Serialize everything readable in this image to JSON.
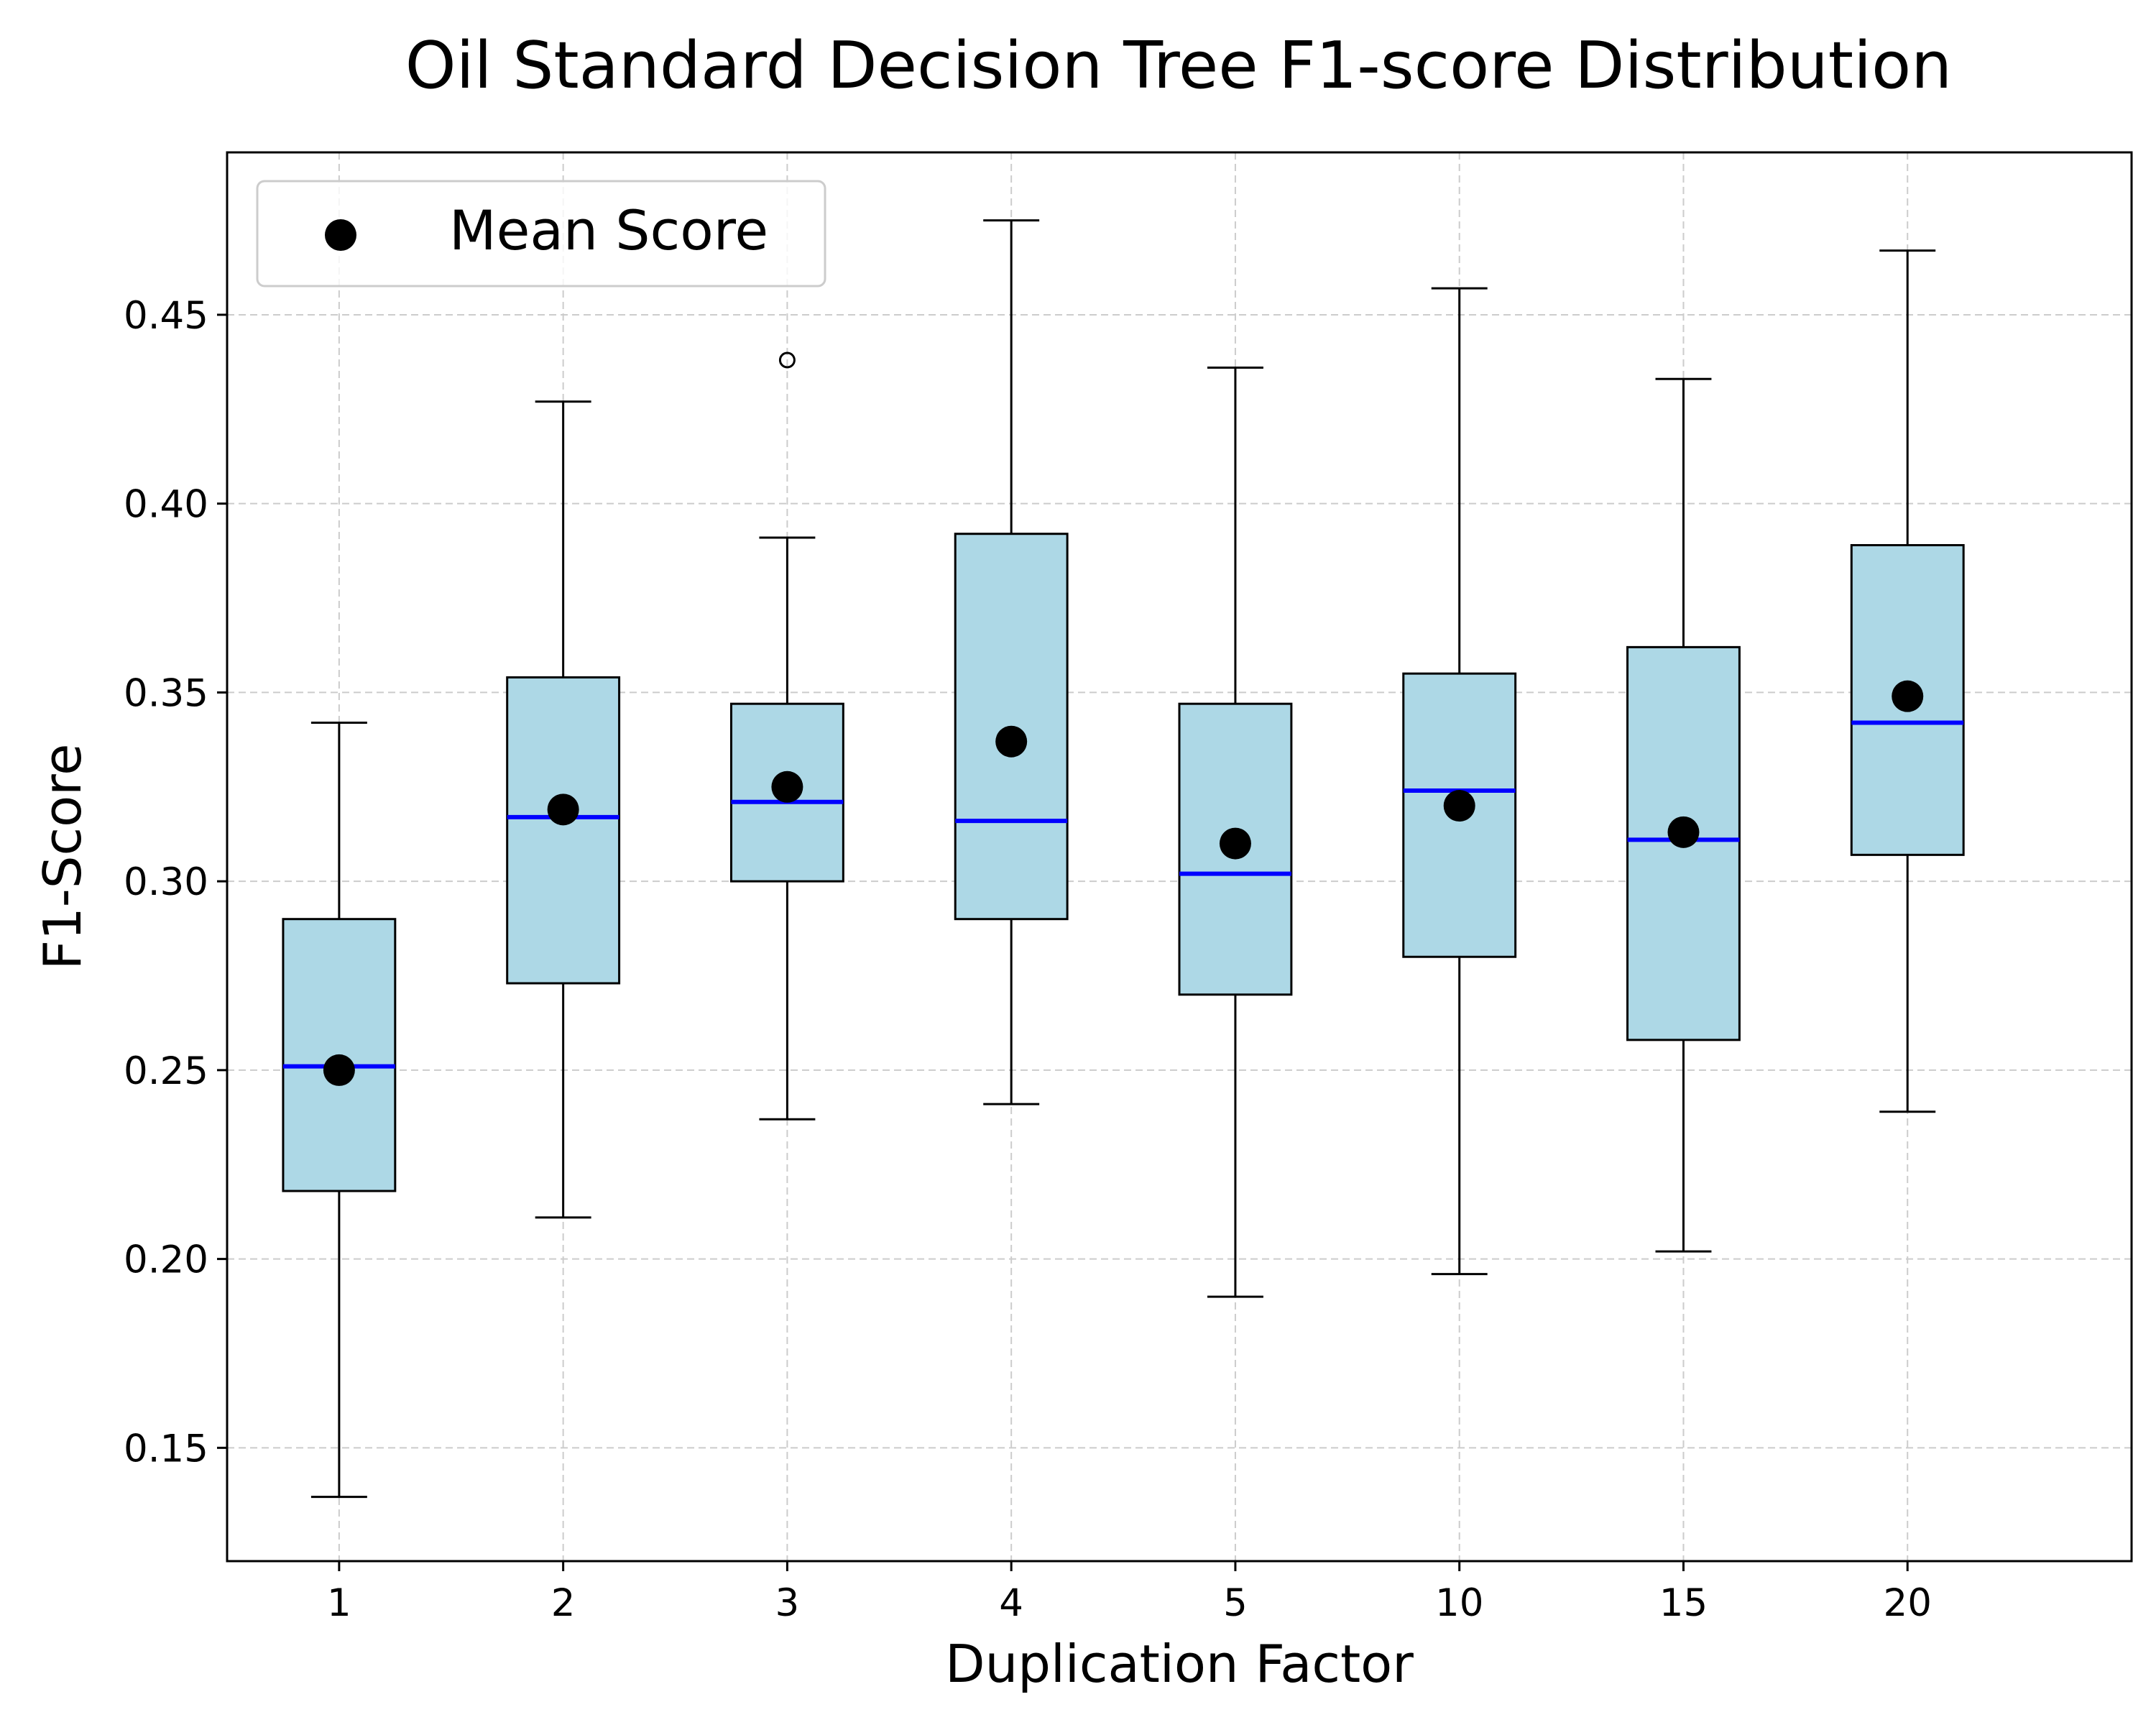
{
  "chart_data": {
    "type": "box",
    "title": "Oil Standard Decision Tree F1-score Distribution",
    "xlabel": "Duplication Factor",
    "ylabel": "F1-Score",
    "ylim": [
      0.12,
      0.493
    ],
    "y_ticks": [
      "0.15",
      "0.20",
      "0.25",
      "0.30",
      "0.35",
      "0.40",
      "0.45"
    ],
    "categories": [
      "1",
      "2",
      "3",
      "4",
      "5",
      "10",
      "15",
      "20"
    ],
    "boxes": [
      {
        "category": "1",
        "whisker_low": 0.137,
        "q1": 0.218,
        "median": 0.251,
        "q3": 0.29,
        "whisker_high": 0.342,
        "mean": 0.25,
        "outliers": []
      },
      {
        "category": "2",
        "whisker_low": 0.211,
        "q1": 0.273,
        "median": 0.317,
        "q3": 0.354,
        "whisker_high": 0.427,
        "mean": 0.319,
        "outliers": []
      },
      {
        "category": "3",
        "whisker_low": 0.237,
        "q1": 0.3,
        "median": 0.321,
        "q3": 0.347,
        "whisker_high": 0.391,
        "mean": 0.325,
        "outliers": [
          0.438
        ]
      },
      {
        "category": "4",
        "whisker_low": 0.241,
        "q1": 0.29,
        "median": 0.316,
        "q3": 0.392,
        "whisker_high": 0.475,
        "mean": 0.337,
        "outliers": []
      },
      {
        "category": "5",
        "whisker_low": 0.19,
        "q1": 0.27,
        "median": 0.302,
        "q3": 0.347,
        "whisker_high": 0.436,
        "mean": 0.31,
        "outliers": []
      },
      {
        "category": "10",
        "whisker_low": 0.196,
        "q1": 0.28,
        "median": 0.324,
        "q3": 0.355,
        "whisker_high": 0.457,
        "mean": 0.32,
        "outliers": []
      },
      {
        "category": "15",
        "whisker_low": 0.202,
        "q1": 0.258,
        "median": 0.311,
        "q3": 0.362,
        "whisker_high": 0.433,
        "mean": 0.313,
        "outliers": []
      },
      {
        "category": "20",
        "whisker_low": 0.239,
        "q1": 0.307,
        "median": 0.342,
        "q3": 0.389,
        "whisker_high": 0.467,
        "mean": 0.349,
        "outliers": []
      }
    ],
    "legend": {
      "placement": "top-left",
      "entries": [
        {
          "label": "Mean Score",
          "marker": "circle"
        }
      ]
    },
    "grid": true,
    "colors": {
      "box_fill": "#add8e6",
      "box_edge": "#000000",
      "median": "#0000ff",
      "mean_marker": "#000000",
      "grid": "#cccccc"
    }
  }
}
